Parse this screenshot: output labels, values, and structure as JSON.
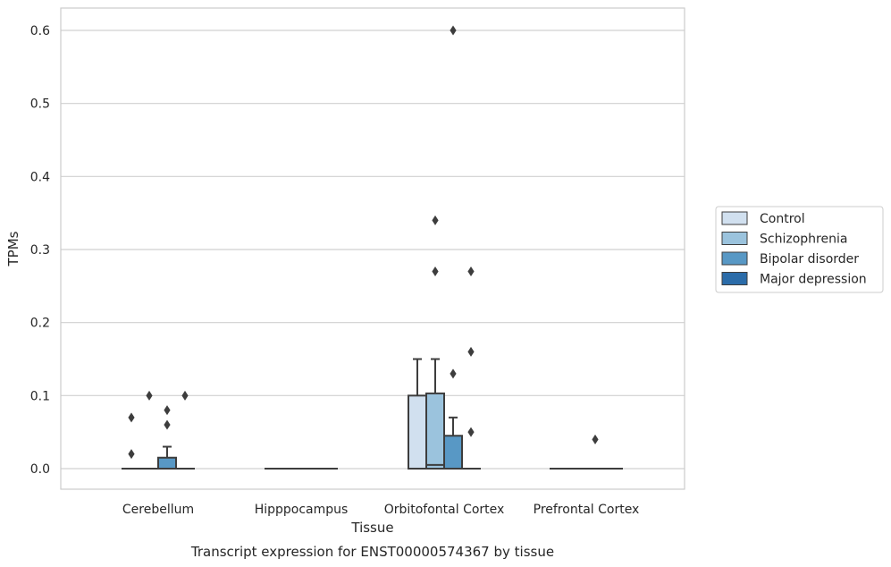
{
  "chart_data": {
    "type": "box",
    "xlabel": "Tissue",
    "ylabel": "TPMs",
    "caption": "Transcript expression for ENST00000574367 by tissue",
    "ylim": [
      -0.03,
      0.63
    ],
    "yticks": [
      "0.0",
      "0.1",
      "0.2",
      "0.3",
      "0.4",
      "0.5",
      "0.6"
    ],
    "grid": "horizontal",
    "legend_position": "right",
    "categories": [
      "Cerebellum",
      "Hipppocampus",
      "Orbitofontal Cortex",
      "Prefrontal Cortex"
    ],
    "series": [
      {
        "name": "Control",
        "color": "#d1e0ef",
        "boxes": [
          {
            "q1": 0,
            "median": 0,
            "q3": 0,
            "whisker_low": 0,
            "whisker_high": 0,
            "outliers": [
              0.02,
              0.07
            ]
          },
          {
            "q1": 0,
            "median": 0,
            "q3": 0,
            "whisker_low": 0,
            "whisker_high": 0,
            "outliers": []
          },
          {
            "q1": 0,
            "median": 0,
            "q3": 0.1,
            "whisker_low": 0,
            "whisker_high": 0.15,
            "outliers": []
          },
          {
            "q1": 0,
            "median": 0,
            "q3": 0,
            "whisker_low": 0,
            "whisker_high": 0,
            "outliers": []
          }
        ]
      },
      {
        "name": "Schizophrenia",
        "color": "#9bc3dd",
        "boxes": [
          {
            "q1": 0,
            "median": 0,
            "q3": 0,
            "whisker_low": 0,
            "whisker_high": 0,
            "outliers": [
              0.1
            ]
          },
          {
            "q1": 0,
            "median": 0,
            "q3": 0,
            "whisker_low": 0,
            "whisker_high": 0,
            "outliers": []
          },
          {
            "q1": 0,
            "median": 0.005,
            "q3": 0.103,
            "whisker_low": 0,
            "whisker_high": 0.15,
            "outliers": [
              0.27,
              0.34
            ]
          },
          {
            "q1": 0,
            "median": 0,
            "q3": 0,
            "whisker_low": 0,
            "whisker_high": 0,
            "outliers": []
          }
        ]
      },
      {
        "name": "Bipolar disorder",
        "color": "#5898c5",
        "boxes": [
          {
            "q1": 0,
            "median": 0,
            "q3": 0.015,
            "whisker_low": 0,
            "whisker_high": 0.03,
            "outliers": [
              0.06,
              0.08
            ]
          },
          {
            "q1": 0,
            "median": 0,
            "q3": 0,
            "whisker_low": 0,
            "whisker_high": 0,
            "outliers": []
          },
          {
            "q1": 0,
            "median": 0,
            "q3": 0.045,
            "whisker_low": 0,
            "whisker_high": 0.07,
            "outliers": [
              0.13,
              0.6
            ]
          },
          {
            "q1": 0,
            "median": 0,
            "q3": 0,
            "whisker_low": 0,
            "whisker_high": 0,
            "outliers": [
              0.04
            ]
          }
        ]
      },
      {
        "name": "Major depression",
        "color": "#2b6ca9",
        "boxes": [
          {
            "q1": 0,
            "median": 0,
            "q3": 0,
            "whisker_low": 0,
            "whisker_high": 0,
            "outliers": [
              0.1
            ]
          },
          {
            "q1": 0,
            "median": 0,
            "q3": 0,
            "whisker_low": 0,
            "whisker_high": 0,
            "outliers": []
          },
          {
            "q1": 0,
            "median": 0,
            "q3": 0,
            "whisker_low": 0,
            "whisker_high": 0,
            "outliers": [
              0.05,
              0.16,
              0.27
            ]
          },
          {
            "q1": 0,
            "median": 0,
            "q3": 0,
            "whisker_low": 0,
            "whisker_high": 0,
            "outliers": []
          }
        ]
      }
    ]
  }
}
